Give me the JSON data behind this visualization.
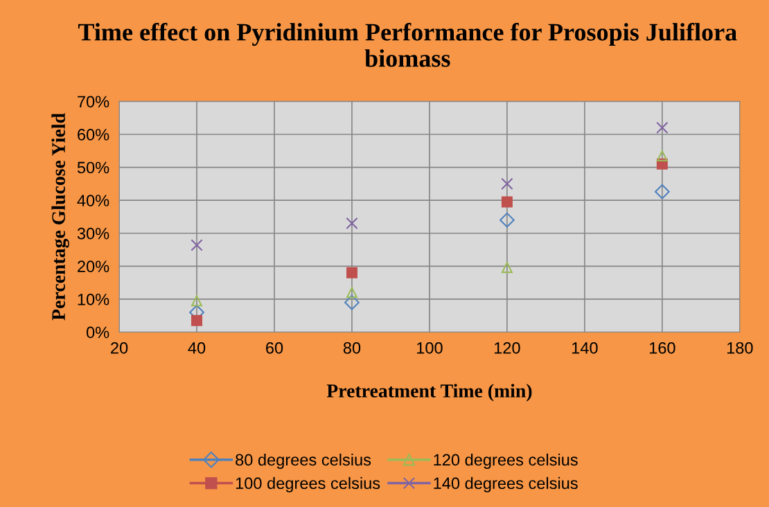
{
  "chart_data": {
    "type": "scatter",
    "title": "Time effect on Pyridinium Performance for Prosopis Juliflora biomass",
    "xlabel": "Pretreatment Time (min)",
    "ylabel": "Percentage Glucose Yield",
    "x": [
      40,
      80,
      120,
      160
    ],
    "series": [
      {
        "name": "80 degrees celsius",
        "color": "#4f81bd",
        "marker": "diamond",
        "values": [
          6,
          9,
          34,
          42.6
        ]
      },
      {
        "name": "100 degrees celsius",
        "color": "#c0504d",
        "marker": "square",
        "values": [
          3.5,
          18,
          39.5,
          51
        ]
      },
      {
        "name": "120 degrees celsius",
        "color": "#9bbb59",
        "marker": "triangle",
        "values": [
          9.5,
          12,
          19.6,
          53.5
        ]
      },
      {
        "name": "140 degrees celsius",
        "color": "#8064a2",
        "marker": "cross",
        "values": [
          26.4,
          33,
          45,
          62
        ]
      }
    ],
    "xlim": [
      20,
      180
    ],
    "xticks": [
      20,
      40,
      60,
      80,
      100,
      120,
      140,
      160,
      180
    ],
    "ylim": [
      0,
      70
    ],
    "yticks": [
      {
        "value": 0,
        "label": "0%"
      },
      {
        "value": 10,
        "label": "10%"
      },
      {
        "value": 20,
        "label": "20%"
      },
      {
        "value": 30,
        "label": "30%"
      },
      {
        "value": 40,
        "label": "40%"
      },
      {
        "value": 50,
        "label": "50%"
      },
      {
        "value": 60,
        "label": "60%"
      },
      {
        "value": 70,
        "label": "70%"
      }
    ],
    "grid": true,
    "legend": "bottom"
  }
}
